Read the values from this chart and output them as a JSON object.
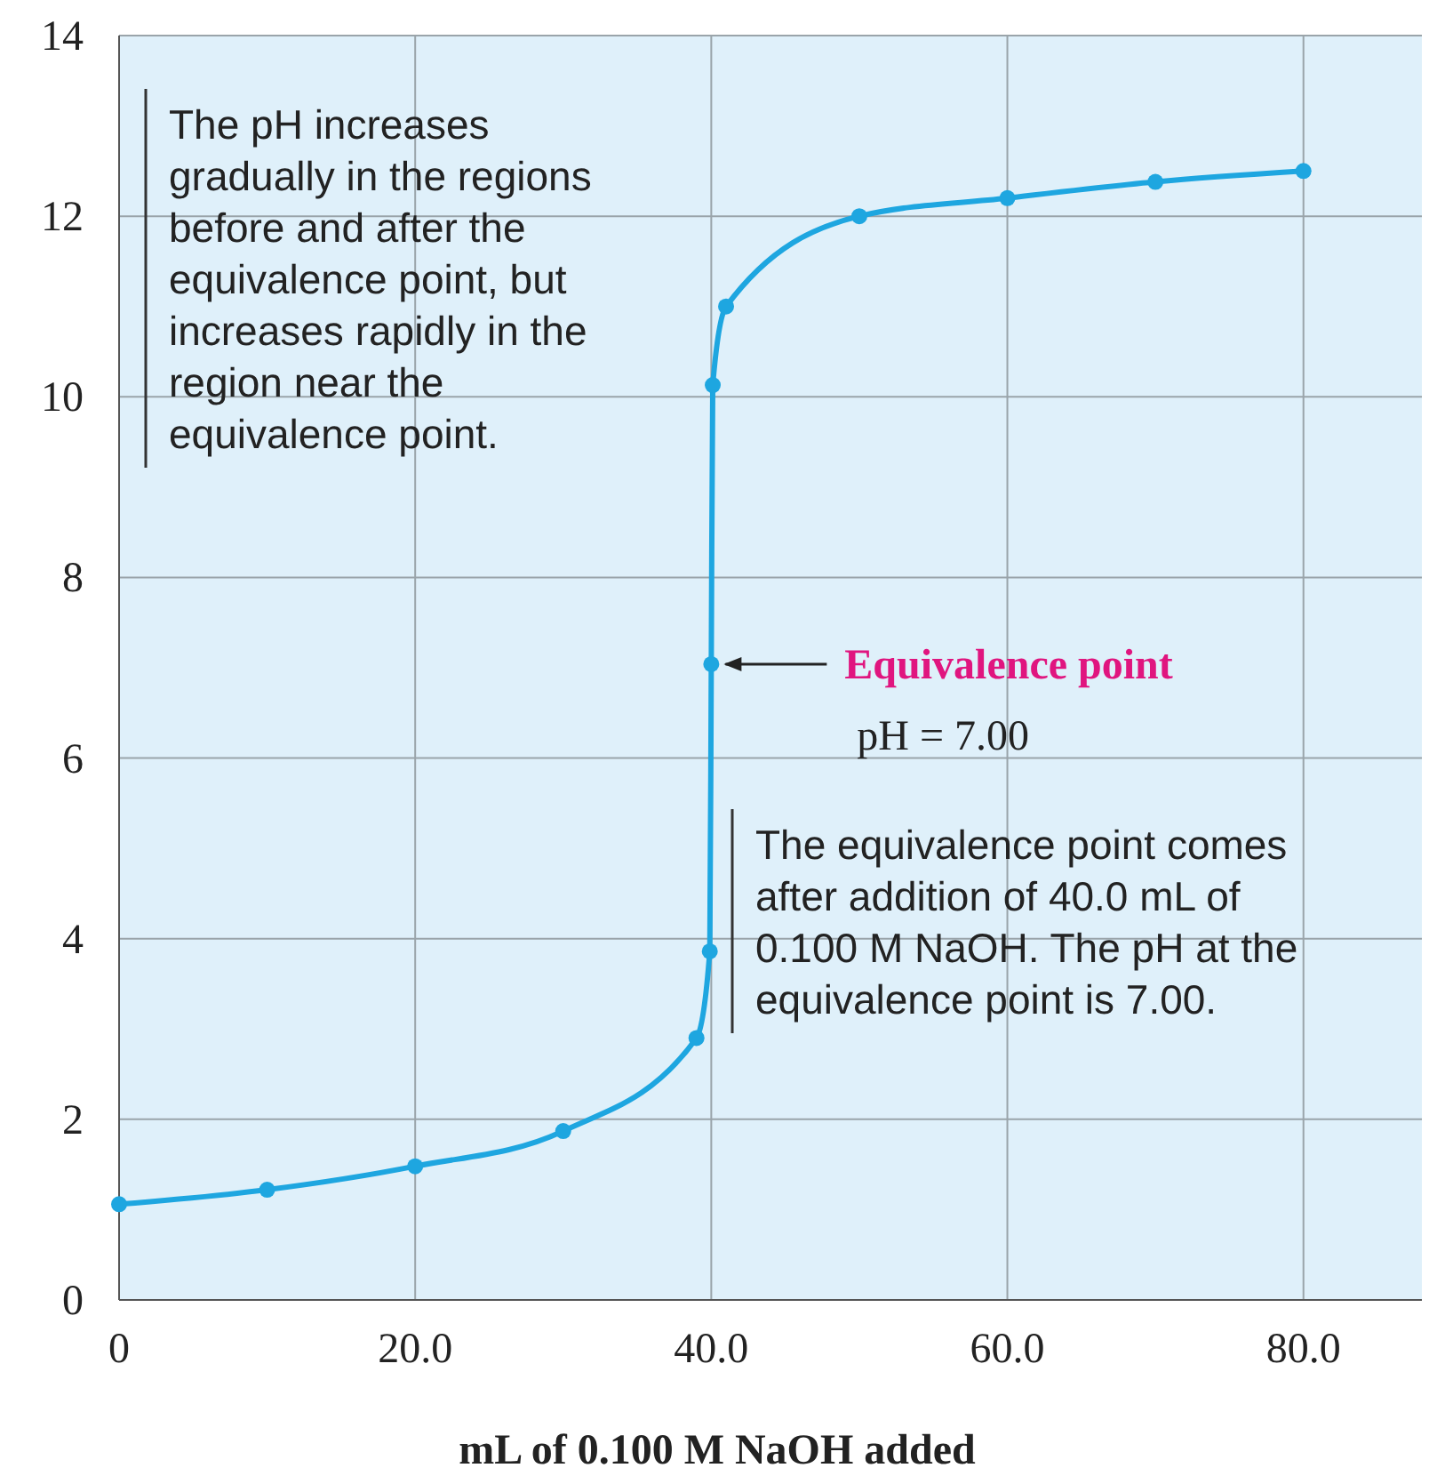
{
  "chart_data": {
    "type": "line",
    "xlabel": "mL of 0.100 M NaOH added",
    "x": [
      0,
      10,
      20,
      30,
      39,
      39.9,
      40,
      40.1,
      41,
      50,
      60,
      70,
      80
    ],
    "series": [
      {
        "color": "#1ea6e0",
        "values": [
          1.06,
          1.22,
          1.48,
          1.87,
          2.9,
          3.86,
          7.04,
          10.13,
          11,
          12,
          12.2,
          12.38,
          12.5
        ]
      }
    ],
    "xlim": [
      0,
      88
    ],
    "ylim": [
      0,
      14
    ],
    "xticks": [
      0,
      {
        "value": 20,
        "label": "20.0"
      },
      {
        "value": 40,
        "label": "40.0"
      },
      {
        "value": 60,
        "label": "60.0"
      },
      {
        "value": 80,
        "label": "80.0"
      }
    ],
    "yticks": [
      0,
      2,
      4,
      6,
      8,
      10,
      12,
      14
    ],
    "grid": true,
    "marker": "circle",
    "line_style": "solid",
    "annotations": [
      "The pH increases gradually in the regions before and after the equivalence point, but increases rapidly in the region near the equivalence point.",
      {
        "text": "Equivalence point",
        "x": 40,
        "y": 7.04
      },
      "pH = 7.00",
      "The equivalence point comes after addition of 40.0 mL of 0.100 M NaOH. The pH at the equivalence point is 7.00."
    ]
  }
}
